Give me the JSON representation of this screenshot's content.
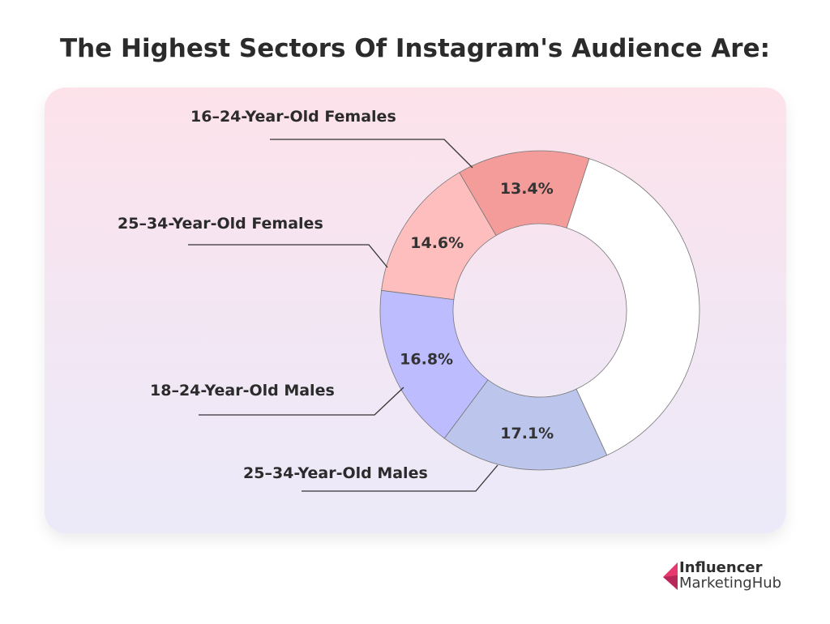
{
  "chart_data": {
    "type": "pie",
    "variant": "donut",
    "title": "The Highest Sectors Of Instagram's Audience Are:",
    "slices": [
      {
        "label": "25–34-Year-Old Males",
        "value": 17.1,
        "display": "17.1%",
        "color": "#bcc6ec"
      },
      {
        "label": "18–24-Year-Old Males",
        "value": 16.8,
        "display": "16.8%",
        "color": "#bcbcff"
      },
      {
        "label": "25–34-Year-Old Females",
        "value": 14.6,
        "display": "14.6%",
        "color": "#ffbebe"
      },
      {
        "label": "16–24-Year-Old Females",
        "value": 13.4,
        "display": "13.4%",
        "color": "#f49c9a"
      }
    ],
    "remainder_color": "#ffffff"
  },
  "brand": {
    "line1": "Influencer",
    "line2": "MarketingHub",
    "color": "#e8396e"
  }
}
